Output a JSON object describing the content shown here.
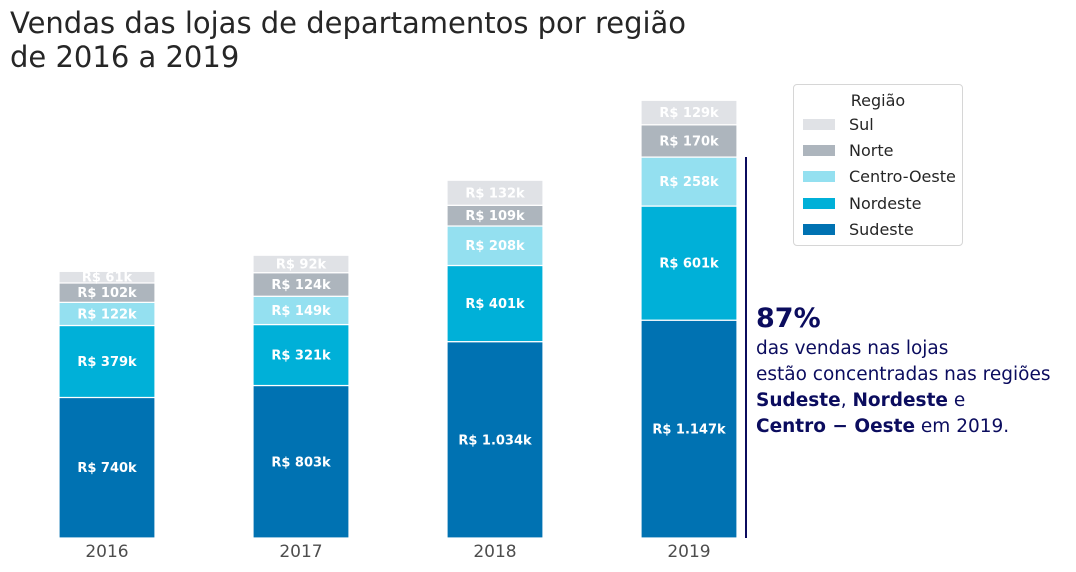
{
  "title": {
    "line1": "Vendas das lojas de departamentos por região",
    "line2": "de 2016 a 2019"
  },
  "legend": {
    "title": "Região"
  },
  "annotation": {
    "percent": "87%",
    "line1": "das vendas nas lojas",
    "line2": "estão concentradas nas regiões",
    "line3_a": "Sudeste",
    "line3_b": ", ",
    "line3_c": "Nordeste",
    "line3_d": " e",
    "line4_a": "Centro − Oeste",
    "line4_b": " em 2019."
  },
  "colors": {
    "Sudeste": "#0072b2",
    "Nordeste": "#00b0d8",
    "Centro-Oeste": "#94e0f0",
    "Norte": "#adb5bd",
    "Sul": "#e0e2e6",
    "annotation": "#0b0c5e"
  },
  "chart_data": {
    "type": "bar",
    "stacked": true,
    "categories": [
      "2016",
      "2017",
      "2018",
      "2019"
    ],
    "series": [
      {
        "name": "Sudeste",
        "values": [
          740,
          803,
          1034,
          1147
        ],
        "labels": [
          "R$ 740k",
          "R$ 803k",
          "R$ 1.034k",
          "R$ 1.147k"
        ]
      },
      {
        "name": "Nordeste",
        "values": [
          379,
          321,
          401,
          601
        ],
        "labels": [
          "R$ 379k",
          "R$ 321k",
          "R$ 401k",
          "R$ 601k"
        ]
      },
      {
        "name": "Centro-Oeste",
        "values": [
          122,
          149,
          208,
          258
        ],
        "labels": [
          "R$ 122k",
          "R$ 149k",
          "R$ 208k",
          "R$ 258k"
        ]
      },
      {
        "name": "Norte",
        "values": [
          102,
          124,
          109,
          170
        ],
        "labels": [
          "R$ 102k",
          "R$ 124k",
          "R$ 109k",
          "R$ 170k"
        ]
      },
      {
        "name": "Sul",
        "values": [
          61,
          92,
          132,
          129
        ],
        "labels": [
          "R$ 61k",
          "R$ 92k",
          "R$ 132k",
          "R$ 129k"
        ]
      }
    ],
    "legend_order": [
      "Sul",
      "Norte",
      "Centro-Oeste",
      "Nordeste",
      "Sudeste"
    ],
    "legend_position": "top-right",
    "grid": false,
    "bracket": {
      "category": "2019",
      "series": [
        "Sudeste",
        "Nordeste",
        "Centro-Oeste"
      ]
    }
  }
}
